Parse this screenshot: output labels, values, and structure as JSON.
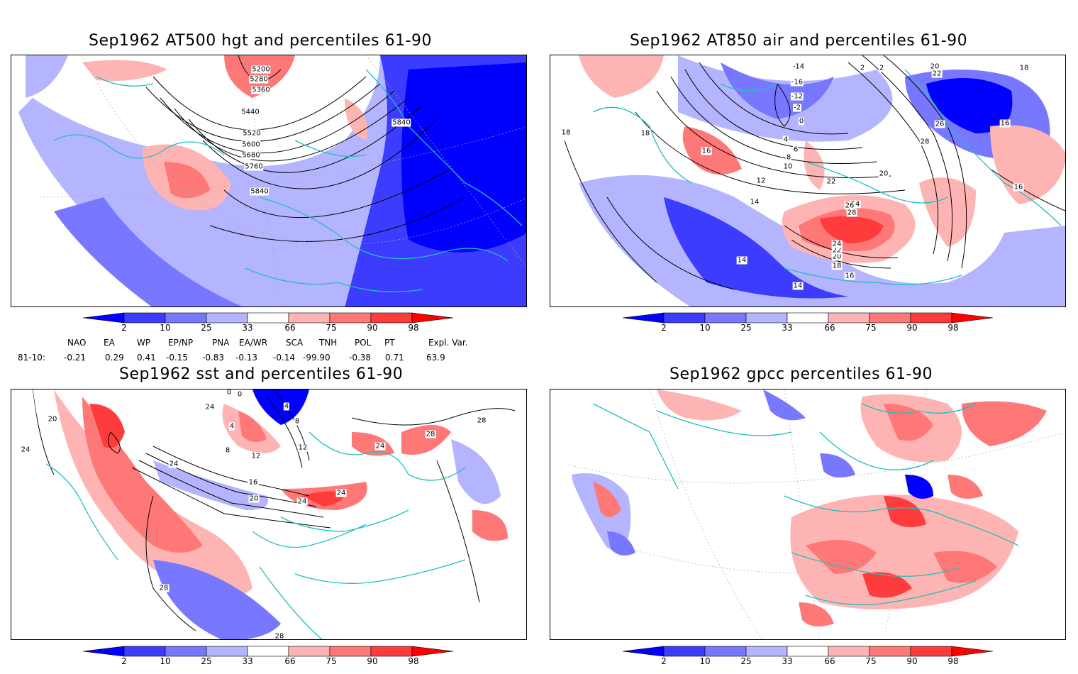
{
  "panels": [
    {
      "title": "Sep1962 AT500 hgt and percentiles 61-90",
      "contour_labels": [
        "5200",
        "5280",
        "5360",
        "5440",
        "5520",
        "5600",
        "5680",
        "5760",
        "5840",
        "5840"
      ]
    },
    {
      "title": "Sep1962 AT850 air and percentiles 61-90",
      "contour_labels": [
        "-14",
        "-16",
        "-12",
        "-2",
        "0",
        "2",
        "4",
        "6",
        "8",
        "10",
        "12",
        "14",
        "16",
        "18",
        "20",
        "22",
        "24",
        "26",
        "28",
        "18",
        "16",
        "14",
        "14",
        "16",
        "18",
        "20",
        "22",
        "24",
        "26",
        "28",
        "18",
        "16",
        "2",
        "20",
        "22"
      ]
    },
    {
      "title": "Sep1962 sst and percentiles 61-90",
      "contour_labels": [
        "0",
        "0",
        "4",
        "8",
        "12",
        "16",
        "20",
        "24",
        "24",
        "24",
        "24",
        "28",
        "28",
        "12",
        "20",
        "24",
        "28",
        "28",
        "24",
        "8",
        "4"
      ]
    },
    {
      "title": "Sep1962 gpcc percentiles 61-90",
      "contour_labels": []
    }
  ],
  "colorbar": {
    "labels": [
      "2",
      "10",
      "25",
      "33",
      "66",
      "75",
      "90",
      "98"
    ],
    "colors": [
      "#0000ff",
      "#3c3cff",
      "#7878ff",
      "#b4b4ff",
      "#ffffff",
      "#ffb4b4",
      "#ff7878",
      "#ff3c3c",
      "#ff0000"
    ]
  },
  "indices": {
    "headers": [
      "NAO",
      "EA",
      "WP",
      "EP/NP",
      "PNA",
      "EA/WR",
      "SCA",
      "TNH",
      "POL",
      "PT",
      "Expl. Var."
    ],
    "row_label": "81-10:",
    "values": [
      "-0.21",
      "0.29",
      "0.41",
      "-0.15",
      "-0.83",
      "-0.13",
      "-0.14",
      "-99.90",
      "-0.38",
      "0.71",
      "63.9"
    ]
  }
}
